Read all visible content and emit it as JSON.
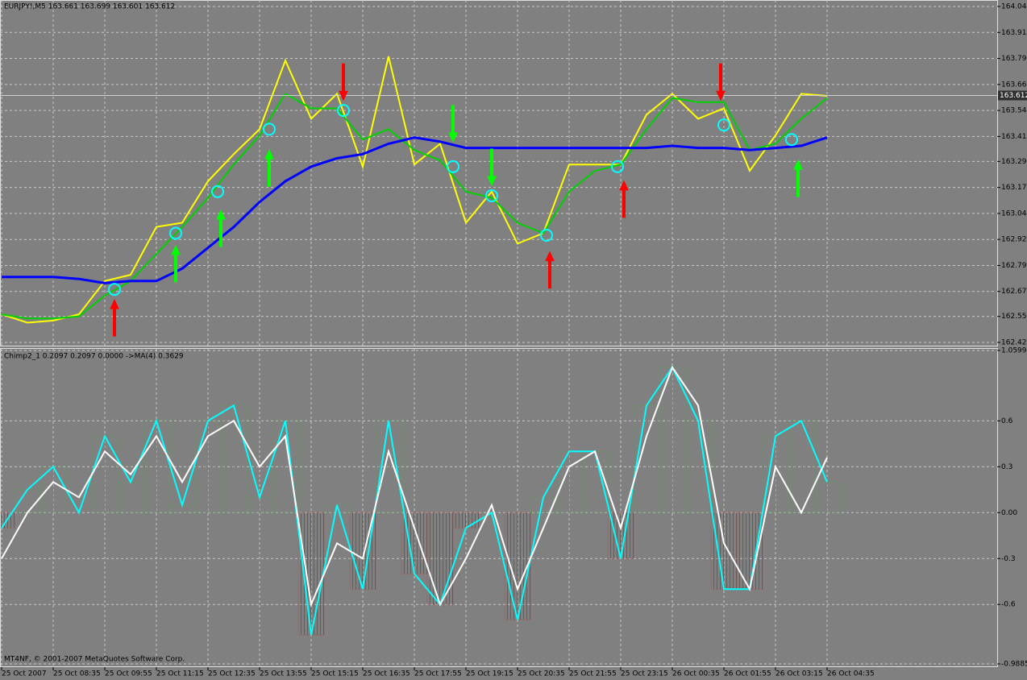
{
  "header": {
    "symbol_info": "EURJPY!,M5  163.661 163.699 163.601 163.612",
    "indicator_info": "Chimp2_1 0.2097 0.2097 0.0000  ->MA(4) 0.3629",
    "copyright": "MT4NF, © 2001-2007 MetaQuotes Software Corp."
  },
  "chart_data": [
    {
      "type": "line",
      "x": [
        0,
        8,
        16,
        24,
        32,
        40,
        48,
        56,
        64,
        72,
        80,
        88,
        96,
        104,
        112,
        120,
        128,
        136,
        144,
        152,
        160,
        168,
        176,
        184,
        192,
        200,
        208,
        216,
        224,
        232,
        240,
        248,
        256
      ],
      "series": [
        {
          "color": "#ffff00",
          "values": [
            162.56,
            162.52,
            162.53,
            162.56,
            162.72,
            162.75,
            162.98,
            163.0,
            163.2,
            163.33,
            163.45,
            163.78,
            163.5,
            163.62,
            163.27,
            163.8,
            163.28,
            163.38,
            163.0,
            163.15,
            162.9,
            162.95,
            163.28,
            163.28,
            163.28,
            163.52,
            163.62,
            163.5,
            163.55,
            163.25,
            163.42,
            163.62,
            163.61
          ]
        },
        {
          "color": "#00d000",
          "values": [
            162.56,
            162.54,
            162.54,
            162.55,
            162.65,
            162.72,
            162.85,
            162.98,
            163.12,
            163.28,
            163.42,
            163.62,
            163.55,
            163.55,
            163.4,
            163.45,
            163.35,
            163.3,
            163.15,
            163.12,
            163.0,
            162.95,
            163.15,
            163.25,
            163.28,
            163.45,
            163.6,
            163.58,
            163.58,
            163.35,
            163.38,
            163.5,
            163.6
          ]
        },
        {
          "color": "#0000ff",
          "values": [
            162.74,
            162.74,
            162.74,
            162.73,
            162.71,
            162.72,
            162.72,
            162.78,
            162.88,
            162.98,
            163.1,
            163.2,
            163.27,
            163.31,
            163.33,
            163.38,
            163.41,
            163.39,
            163.36,
            163.36,
            163.36,
            163.36,
            163.36,
            163.36,
            163.36,
            163.36,
            163.37,
            163.36,
            163.36,
            163.35,
            163.36,
            163.37,
            163.41
          ]
        }
      ],
      "xlim": [
        0,
        308.75
      ],
      "ylim": [
        162.425,
        164.04
      ],
      "yticks": [
        {
          "value": 164.04,
          "label": "164.040"
        },
        163.915,
        {
          "value": 163.79,
          "label": "163.790"
        },
        163.665,
        {
          "value": 163.54,
          "label": "163.540"
        },
        163.415,
        163.295,
        {
          "value": 163.17,
          "label": "163.170"
        },
        163.045,
        {
          "value": 162.92,
          "label": "162.920"
        },
        162.795,
        {
          "value": 162.67,
          "label": "162.670"
        },
        {
          "value": 162.55,
          "label": "162.550"
        },
        162.425
      ],
      "current_price": 163.612,
      "grid": true,
      "arrows": [
        {
          "x": 35,
          "y": 162.63,
          "direction": "up",
          "color": "#ff0000"
        },
        {
          "x": 54,
          "y": 162.89,
          "direction": "up",
          "color": "#00ff00"
        },
        {
          "x": 68,
          "y": 163.06,
          "direction": "up",
          "color": "#00ff00"
        },
        {
          "x": 83,
          "y": 163.35,
          "direction": "up",
          "color": "#00ff00"
        },
        {
          "x": 106,
          "y": 163.59,
          "direction": "down",
          "color": "#ff0000"
        },
        {
          "x": 140,
          "y": 163.39,
          "direction": "down",
          "color": "#00ff00"
        },
        {
          "x": 152,
          "y": 163.18,
          "direction": "down",
          "color": "#00ff00"
        },
        {
          "x": 170,
          "y": 162.86,
          "direction": "up",
          "color": "#ff0000"
        },
        {
          "x": 193,
          "y": 163.2,
          "direction": "up",
          "color": "#ff0000"
        },
        {
          "x": 223,
          "y": 163.59,
          "direction": "down",
          "color": "#ff0000"
        },
        {
          "x": 247,
          "y": 163.3,
          "direction": "up",
          "color": "#00ff00"
        }
      ],
      "circles": {
        "color": "#00ffff",
        "x": [
          35,
          54,
          67,
          83,
          106,
          140,
          152,
          169,
          191,
          224,
          245
        ],
        "y": [
          162.68,
          162.95,
          163.15,
          163.45,
          163.54,
          163.27,
          163.13,
          162.94,
          163.27,
          163.47,
          163.4
        ]
      }
    },
    {
      "type": "bar",
      "x": [
        0,
        8,
        16,
        24,
        32,
        40,
        48,
        56,
        64,
        72,
        80,
        88,
        96,
        104,
        112,
        120,
        128,
        136,
        144,
        152,
        160,
        168,
        176,
        184,
        192,
        200,
        208,
        216,
        224,
        232,
        240,
        248,
        256
      ],
      "values": [
        -0.1,
        0.15,
        0.3,
        0.0,
        0.5,
        0.2,
        0.6,
        0.05,
        0.6,
        0.7,
        0.1,
        0.6,
        -0.8,
        0.05,
        -0.5,
        0.6,
        -0.4,
        -0.6,
        -0.1,
        0.0,
        -0.7,
        0.1,
        0.4,
        0.4,
        -0.3,
        0.7,
        0.95,
        0.6,
        -0.5,
        -0.5,
        0.5,
        0.6,
        0.2
      ],
      "positive_color": "#3cb43c",
      "negative_color": "#c83232",
      "series": [
        {
          "color": "#00ffff",
          "values": [
            -0.1,
            0.15,
            0.3,
            0.0,
            0.5,
            0.2,
            0.6,
            0.05,
            0.6,
            0.7,
            0.1,
            0.6,
            -0.8,
            0.05,
            -0.5,
            0.6,
            -0.4,
            -0.6,
            -0.1,
            0.0,
            -0.7,
            0.1,
            0.4,
            0.4,
            -0.3,
            0.7,
            0.95,
            0.6,
            -0.5,
            -0.5,
            0.5,
            0.6,
            0.2
          ]
        },
        {
          "color": "#ffffff",
          "values": [
            -0.3,
            0.0,
            0.2,
            0.1,
            0.4,
            0.25,
            0.5,
            0.2,
            0.5,
            0.6,
            0.3,
            0.5,
            -0.6,
            -0.2,
            -0.3,
            0.4,
            -0.1,
            -0.6,
            -0.3,
            0.05,
            -0.5,
            -0.1,
            0.3,
            0.4,
            -0.1,
            0.5,
            0.95,
            0.7,
            -0.2,
            -0.5,
            0.3,
            0.0,
            0.36
          ]
        }
      ],
      "xlim": [
        0,
        308.75
      ],
      "ylim": [
        -0.9885,
        1.0599
      ],
      "yticks": [
        1.0599,
        0.6,
        0.3,
        {
          "value": 0,
          "label": "0.00"
        },
        -0.3,
        -0.6,
        -0.9885
      ],
      "xticks": [
        {
          "value": 0,
          "label": "25 Oct 2007"
        },
        {
          "value": 16,
          "label": "25 Oct 08:35"
        },
        {
          "value": 32,
          "label": "25 Oct 09:55"
        },
        {
          "value": 48,
          "label": "25 Oct 11:15"
        },
        {
          "value": 64,
          "label": "25 Oct 12:35"
        },
        {
          "value": 80,
          "label": "25 Oct 13:55"
        },
        {
          "value": 96,
          "label": "25 Oct 15:15"
        },
        {
          "value": 112,
          "label": "25 Oct 16:35"
        },
        {
          "value": 128,
          "label": "25 Oct 17:55"
        },
        {
          "value": 144,
          "label": "25 Oct 19:15"
        },
        {
          "value": 160,
          "label": "25 Oct 20:35"
        },
        {
          "value": 176,
          "label": "25 Oct 21:55"
        },
        {
          "value": 192,
          "label": "25 Oct 23:15"
        },
        {
          "value": 208,
          "label": "26 Oct 00:35"
        },
        {
          "value": 224,
          "label": "26 Oct 01:55"
        },
        {
          "value": 240,
          "label": "26 Oct 03:15"
        },
        {
          "value": 256,
          "label": "26 Oct 04:35"
        }
      ],
      "grid": true
    }
  ]
}
